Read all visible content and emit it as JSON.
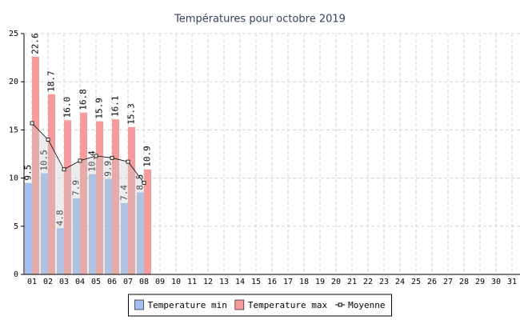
{
  "chart_data": {
    "type": "bar",
    "title": "Températures pour octobre 2019",
    "categories": [
      "01",
      "02",
      "03",
      "04",
      "05",
      "06",
      "07",
      "08",
      "09",
      "10",
      "11",
      "12",
      "13",
      "14",
      "15",
      "16",
      "17",
      "18",
      "19",
      "20",
      "21",
      "22",
      "23",
      "24",
      "25",
      "26",
      "27",
      "28",
      "29",
      "30",
      "31"
    ],
    "series": [
      {
        "name": "Temperature min",
        "color": "#a4bff0",
        "values": [
          9.5,
          10.5,
          4.8,
          7.9,
          10.4,
          9.9,
          7.4,
          8.5,
          null,
          null,
          null,
          null,
          null,
          null,
          null,
          null,
          null,
          null,
          null,
          null,
          null,
          null,
          null,
          null,
          null,
          null,
          null,
          null,
          null,
          null,
          null
        ],
        "value_labels": [
          "9.5",
          "10.5",
          "4.8",
          "7.9",
          "10.4",
          "9.9",
          "7.4",
          "8.5",
          null,
          null,
          null,
          null,
          null,
          null,
          null,
          null,
          null,
          null,
          null,
          null,
          null,
          null,
          null,
          null,
          null,
          null,
          null,
          null,
          null,
          null,
          null
        ]
      },
      {
        "name": "Temperature max",
        "color": "#f59b9b",
        "values": [
          22.6,
          18.7,
          16.0,
          16.8,
          15.9,
          16.1,
          15.3,
          10.9,
          null,
          null,
          null,
          null,
          null,
          null,
          null,
          null,
          null,
          null,
          null,
          null,
          null,
          null,
          null,
          null,
          null,
          null,
          null,
          null,
          null,
          null,
          null
        ],
        "value_labels": [
          "22.6",
          "18.7",
          "16.0",
          "16.8",
          "15.9",
          "16.1",
          "15.3",
          "10.9",
          null,
          null,
          null,
          null,
          null,
          null,
          null,
          null,
          null,
          null,
          null,
          null,
          null,
          null,
          null,
          null,
          null,
          null,
          null,
          null,
          null,
          null,
          null
        ]
      },
      {
        "name": "Moyenne",
        "type": "line",
        "color": "#000000",
        "values": [
          15.7,
          14.0,
          10.9,
          11.8,
          12.3,
          12.1,
          11.7,
          9.5,
          null,
          null,
          null,
          null,
          null,
          null,
          null,
          null,
          null,
          null,
          null,
          null,
          null,
          null,
          null,
          null,
          null,
          null,
          null,
          null,
          null,
          null,
          null
        ]
      }
    ],
    "ylim": [
      0,
      25
    ],
    "yticks": [
      0,
      5,
      10,
      15,
      20,
      25
    ],
    "grid": true,
    "legend": "bottom"
  }
}
